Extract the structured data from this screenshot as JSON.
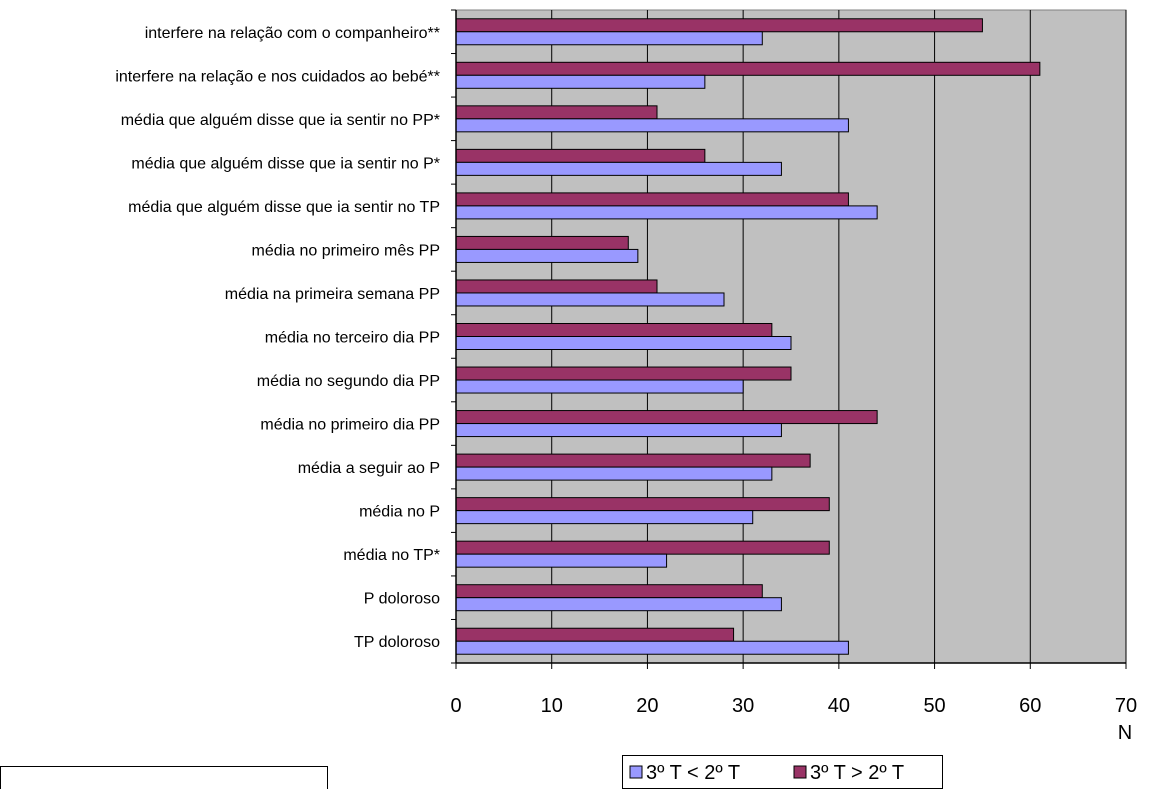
{
  "chart_data": {
    "type": "bar",
    "orientation": "horizontal",
    "categories": [
      "interfere na relação com o companheiro**",
      "interfere na relação e nos cuidados ao bebé**",
      "média que alguém disse que ia sentir no PP*",
      "média que alguém disse que ia sentir no P*",
      "média que alguém disse que ia sentir no TP",
      "média no primeiro mês PP",
      "média na primeira semana PP",
      "média no terceiro dia PP",
      "média no segundo dia PP",
      "média no primeiro dia PP",
      "média a seguir ao P",
      "média no P",
      "média no TP*",
      "P doloroso",
      "TP doloroso"
    ],
    "series": [
      {
        "name": "3º T > 2º T",
        "color": "#993366",
        "values": [
          55,
          61,
          21,
          26,
          41,
          18,
          21,
          33,
          35,
          44,
          37,
          39,
          39,
          32,
          29
        ]
      },
      {
        "name": "3º T < 2º T",
        "color": "#9999ff",
        "values": [
          32,
          26,
          41,
          34,
          44,
          19,
          28,
          35,
          30,
          34,
          33,
          31,
          22,
          34,
          41
        ]
      }
    ],
    "xlim": [
      0,
      70
    ],
    "xticks": [
      "0",
      "10",
      "20",
      "30",
      "40",
      "50",
      "60",
      "70"
    ],
    "xlabel": "N",
    "grid": true,
    "plot_background": "#c0c0c0",
    "legend": {
      "placement": "bottom",
      "entries": [
        {
          "label": "3º T < 2º T",
          "color": "#9999ff"
        },
        {
          "label": "3º T > 2º T",
          "color": "#993366"
        }
      ]
    }
  }
}
